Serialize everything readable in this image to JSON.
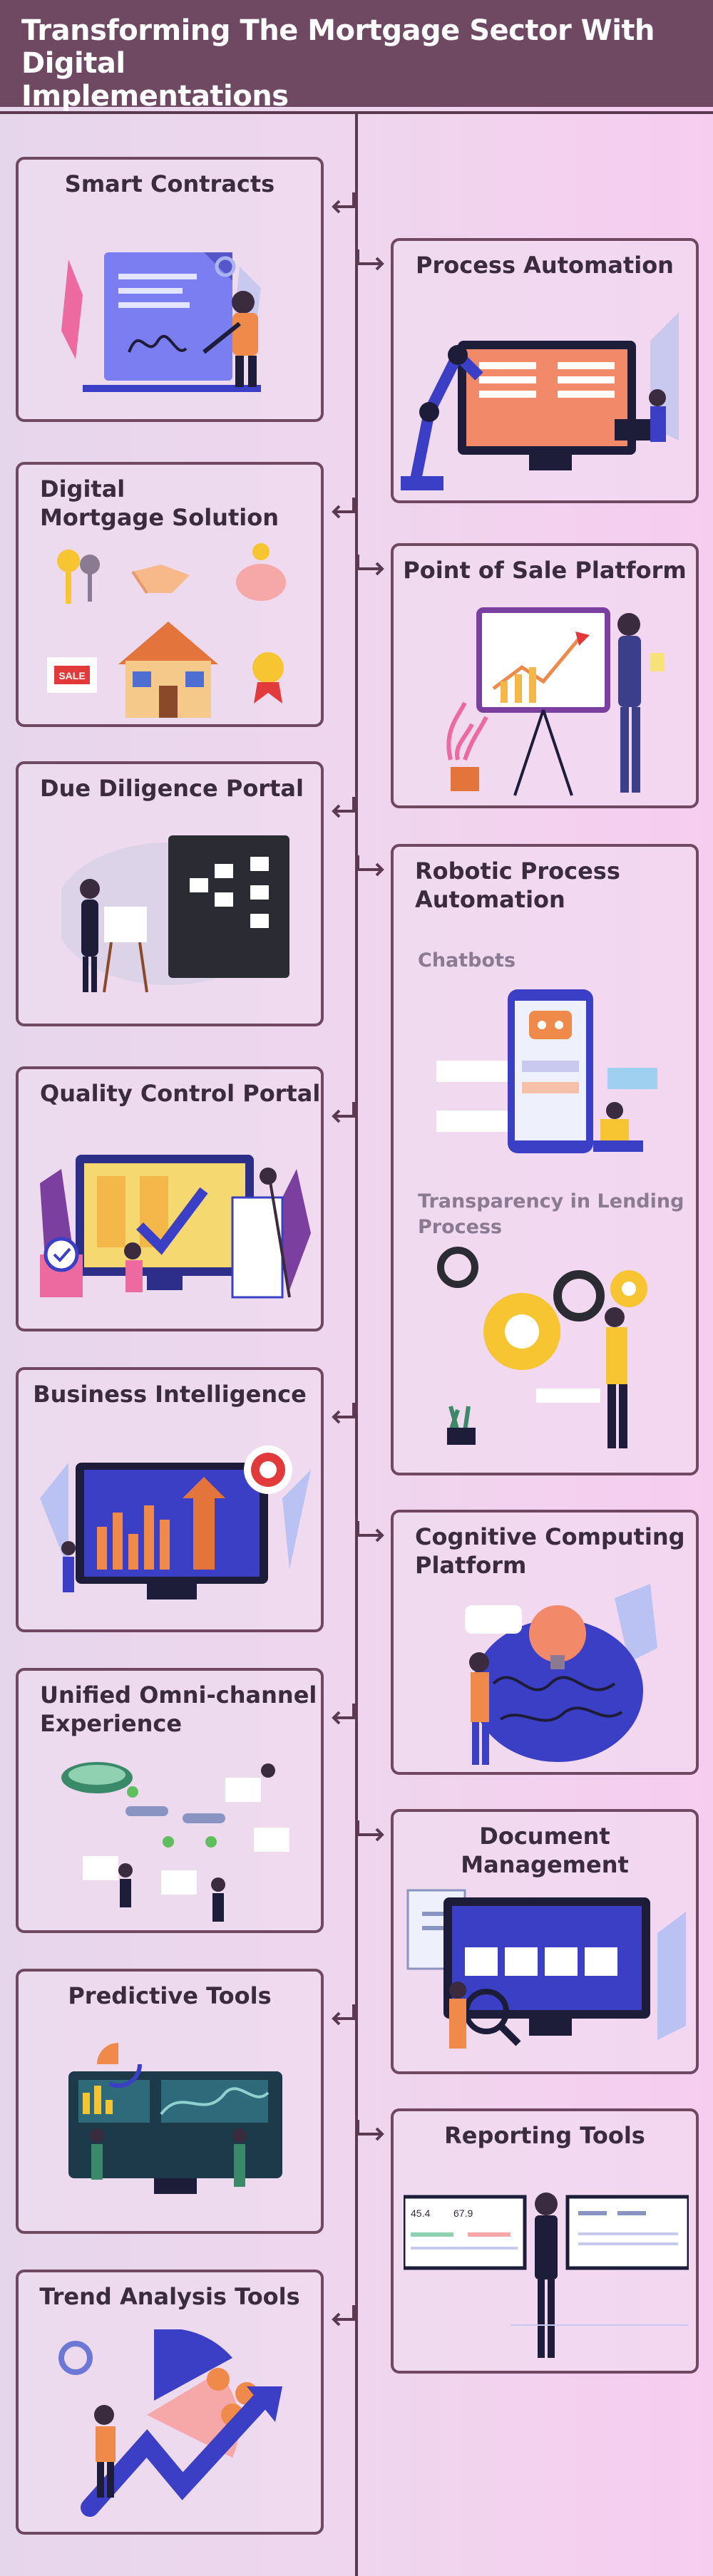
{
  "header": {
    "title_line1": "Transforming The Mortgage Sector With Digital",
    "title_line2": "Implementations"
  },
  "left_cards": {
    "smart_contracts": "Smart Contracts",
    "digital_mortgage_line1": "Digital",
    "digital_mortgage_line2": "Mortgage Solution",
    "due_diligence": "Due Diligence Portal",
    "quality_control": "Quality Control Portal",
    "business_intelligence": "Business Intelligence",
    "omni_line1": "Unified Omni-channel",
    "omni_line2": "Experience",
    "predictive_tools": "Predictive Tools",
    "trend_analysis": "Trend Analysis Tools"
  },
  "right_cards": {
    "process_automation": "Process Automation",
    "point_of_sale": "Point of Sale Platform",
    "rpa_line1": "Robotic Process",
    "rpa_line2": "Automation",
    "rpa_sub1": "Chatbots",
    "rpa_sub2_line1": "Transparency in Lending",
    "rpa_sub2_line2": "Process",
    "cognitive_line1": "Cognitive Computing",
    "cognitive_line2": "Platform",
    "document_management": "Document Management",
    "reporting_tools": "Reporting Tools"
  },
  "illustration_text": {
    "sale_sign": "SALE",
    "reporting_left": "45.4",
    "reporting_mid": "67.9"
  },
  "colors": {
    "header_bg": "#6f4862",
    "border": "#6f4862",
    "accent_blue": "#3b3fc6",
    "accent_orange": "#f08a4b",
    "accent_yellow": "#f7c531",
    "accent_pink": "#ec6aa0"
  }
}
